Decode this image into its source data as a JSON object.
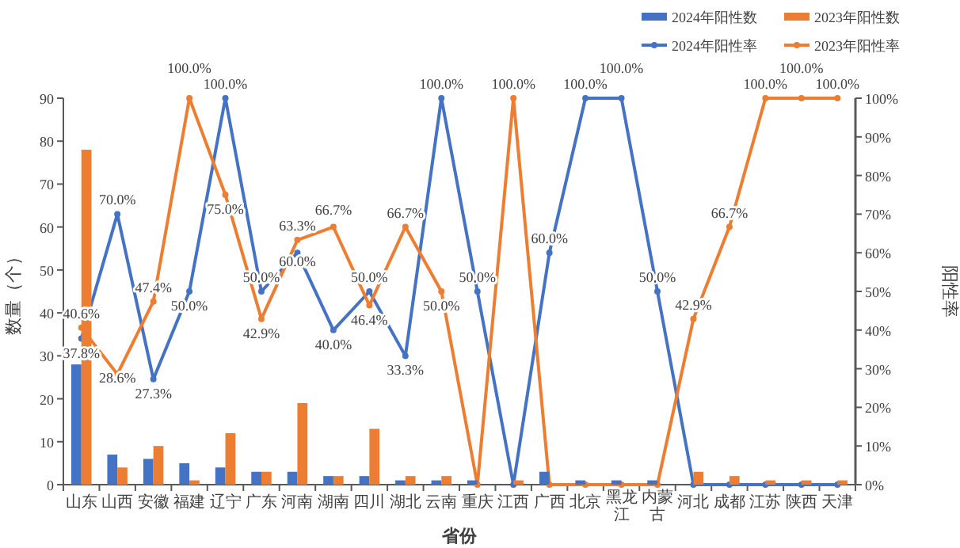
{
  "chart_data": {
    "type": "bar",
    "categories": [
      "山东",
      "山西",
      "安徽",
      "福建",
      "辽宁",
      "广东",
      "河南",
      "湖南",
      "四川",
      "湖北",
      "云南",
      "重庆",
      "江西",
      "广西",
      "北京",
      "黑龙江",
      "内蒙古",
      "河北",
      "成都",
      "江苏",
      "陕西",
      "天津"
    ],
    "xlabel": "省份",
    "ylabel": "数量（个）",
    "y2label": "阳性率",
    "ylim": [
      0,
      90
    ],
    "yticks": [
      0,
      10,
      20,
      30,
      40,
      50,
      60,
      70,
      80,
      90
    ],
    "y2lim": [
      0,
      100
    ],
    "y2ticks": [
      {
        "value": 0,
        "label": "0%"
      },
      {
        "value": 10,
        "label": "10%"
      },
      {
        "value": 20,
        "label": "20%"
      },
      {
        "value": 30,
        "label": "30%"
      },
      {
        "value": 40,
        "label": "40%"
      },
      {
        "value": 50,
        "label": "50%"
      },
      {
        "value": 60,
        "label": "60%"
      },
      {
        "value": 70,
        "label": "70%"
      },
      {
        "value": 80,
        "label": "80%"
      },
      {
        "value": 90,
        "label": "90%"
      },
      {
        "value": 100,
        "label": "100%"
      }
    ],
    "legend": "top right",
    "series": [
      {
        "name": "2024年阳性数",
        "color": "#4472c4",
        "values": [
          28,
          7,
          6,
          5,
          4,
          3,
          3,
          2,
          2,
          1,
          1,
          1,
          0,
          3,
          1,
          1,
          1,
          0,
          0,
          0,
          0,
          0
        ]
      },
      {
        "name": "2023年阳性数",
        "color": "#ed7d31",
        "values": [
          78,
          4,
          9,
          1,
          12,
          3,
          19,
          2,
          13,
          2,
          2,
          0,
          1,
          0,
          0,
          0,
          0,
          3,
          2,
          1,
          1,
          1
        ]
      },
      {
        "name": "2024年阳性率",
        "type": "line",
        "axis": "y2",
        "marker": "circle",
        "color": "#4472c4",
        "values": [
          37.8,
          70.0,
          27.3,
          50.0,
          100,
          50.0,
          60.0,
          40.0,
          50.0,
          33.3,
          100,
          50.0,
          0,
          60.0,
          100,
          100,
          50.0,
          0,
          0,
          0,
          0,
          0
        ],
        "value_labels": [
          "37.8%",
          "70.0%",
          "27.3%",
          "50.0%",
          "100.0%",
          "50.0%",
          "60.0%",
          "40.0%",
          "50.0%",
          "33.3%",
          "100.0%",
          "50.0%",
          null,
          "60.0%",
          "100.0%",
          "100.0%",
          "50.0%",
          null,
          null,
          null,
          null,
          null
        ]
      },
      {
        "name": "2023年阳性率",
        "type": "line",
        "axis": "y2",
        "marker": "circle",
        "color": "#ed7d31",
        "values": [
          40.6,
          28.6,
          47.4,
          100,
          75.0,
          42.9,
          63.3,
          66.7,
          46.4,
          66.7,
          50.0,
          0,
          100,
          0,
          0,
          0,
          0,
          42.9,
          66.7,
          100,
          100,
          100
        ],
        "value_labels": [
          "40.6%",
          "28.6%",
          "47.4%",
          "100.0%",
          "75.0%",
          "42.9%",
          "63.3%",
          "66.7%",
          "46.4%",
          "66.7%",
          "50.0%",
          null,
          "100.0%",
          null,
          null,
          null,
          null,
          "42.9%",
          "66.7%",
          "100.0%",
          "100.0%",
          "100.0%"
        ]
      }
    ]
  }
}
